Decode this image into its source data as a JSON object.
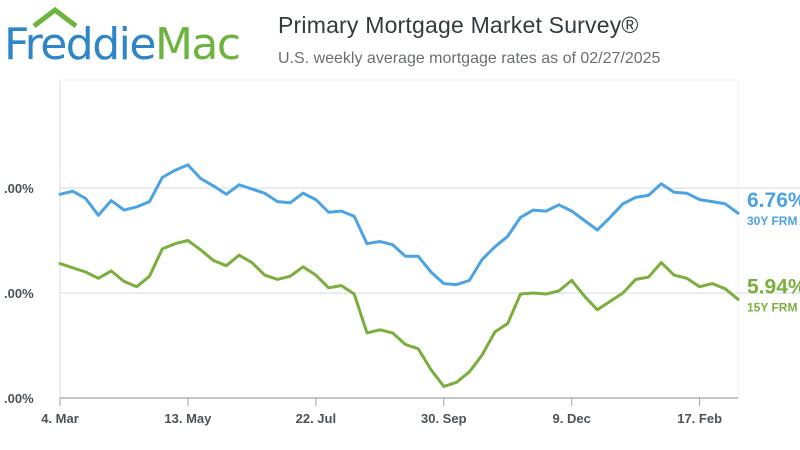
{
  "brand": {
    "logo_word1": "Freddie",
    "logo_word2": "Mac",
    "colors": {
      "blue": "#2e86c8",
      "green": "#6db33f"
    }
  },
  "header": {
    "title": "Primary Mortgage Market Survey®",
    "subtitle": "U.S. weekly average mortgage rates as of 02/27/2025"
  },
  "chart_data": {
    "type": "line",
    "title": "Primary Mortgage Market Survey®",
    "subtitle": "U.S. weekly average mortgage rates as of 02/27/2025",
    "xlabel": "",
    "ylabel": "",
    "ylim": [
      5.0,
      7.5
    ],
    "yticks": [
      5.0,
      6.0,
      7.0
    ],
    "ytick_labels": [
      ".00%",
      ".00%",
      ".00%"
    ],
    "xtick_labels": [
      "4. Mar",
      "13. May",
      "22. Jul",
      "30. Sep",
      "9. Dec",
      "17. Feb"
    ],
    "xtick_index": [
      0,
      10,
      20,
      30,
      40,
      50
    ],
    "grid": "horizontal",
    "end_labels": [
      {
        "value": "6.76%",
        "label": "30Y FRM"
      },
      {
        "value": "5.94%",
        "label": "15Y FRM"
      }
    ],
    "series": [
      {
        "name": "30Y FRM",
        "color": "#4ba3e3",
        "values": [
          6.94,
          6.97,
          6.9,
          6.74,
          6.88,
          6.79,
          6.82,
          6.87,
          7.1,
          7.17,
          7.22,
          7.09,
          7.02,
          6.94,
          7.03,
          6.99,
          6.95,
          6.87,
          6.86,
          6.95,
          6.89,
          6.77,
          6.78,
          6.73,
          6.47,
          6.49,
          6.46,
          6.35,
          6.35,
          6.2,
          6.09,
          6.08,
          6.12,
          6.32,
          6.44,
          6.54,
          6.72,
          6.79,
          6.78,
          6.84,
          6.78,
          6.69,
          6.6,
          6.72,
          6.85,
          6.91,
          6.93,
          7.04,
          6.96,
          6.95,
          6.89,
          6.87,
          6.85,
          6.76
        ]
      },
      {
        "name": "15Y FRM",
        "color": "#7aaf3d",
        "values": [
          6.28,
          6.24,
          6.2,
          6.14,
          6.21,
          6.11,
          6.06,
          6.16,
          6.42,
          6.47,
          6.5,
          6.41,
          6.31,
          6.26,
          6.36,
          6.29,
          6.17,
          6.13,
          6.16,
          6.25,
          6.17,
          6.05,
          6.07,
          5.99,
          5.62,
          5.65,
          5.62,
          5.51,
          5.47,
          5.27,
          5.11,
          5.15,
          5.25,
          5.41,
          5.63,
          5.71,
          5.99,
          6.0,
          5.99,
          6.02,
          6.12,
          5.97,
          5.84,
          5.92,
          6.0,
          6.13,
          6.15,
          6.29,
          6.17,
          6.14,
          6.06,
          6.09,
          6.04,
          5.94
        ]
      }
    ]
  }
}
